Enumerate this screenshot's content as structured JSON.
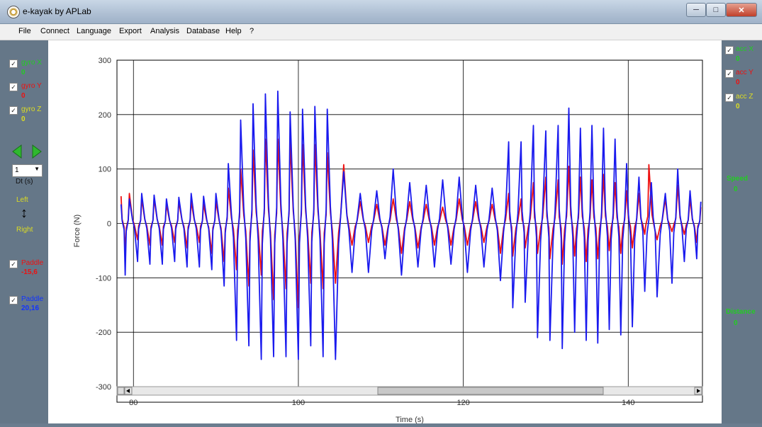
{
  "window": {
    "title": "e-kayak by APLab"
  },
  "menu": [
    "File",
    "Connect",
    "Language",
    "Export",
    "Analysis",
    "Database",
    "Help",
    "?"
  ],
  "left_panel": {
    "gyro": [
      {
        "label": "gyro X",
        "value": "0",
        "color": "#22cc22"
      },
      {
        "label": "gyro Y",
        "value": "0",
        "color": "#ee1111"
      },
      {
        "label": "gyro Z",
        "value": "0",
        "color": "#dddd22"
      }
    ],
    "dt_value": "1",
    "dt_label": "Dt (s)",
    "left_label": "Left",
    "right_label": "Right",
    "paddle_red": {
      "label": "Paddle",
      "value": "-15,6",
      "color": "#ee1111"
    },
    "paddle_blue": {
      "label": "Paddle",
      "value": "20,16",
      "color": "#1133ff"
    }
  },
  "right_panel": {
    "acc": [
      {
        "label": "acc X",
        "value": "0",
        "color": "#22cc22"
      },
      {
        "label": "acc Y",
        "value": "0",
        "color": "#ee1111"
      },
      {
        "label": "acc Z",
        "value": "0",
        "color": "#dddd22"
      }
    ],
    "speed_label": "Speed",
    "speed_value": "0",
    "distance_label": "Distance",
    "distance_value": "0"
  },
  "chart_data": {
    "type": "line",
    "title": "",
    "xlabel": "Time (s)",
    "ylabel": "Force (N)",
    "xlim": [
      78,
      149
    ],
    "ylim": [
      -300,
      300
    ],
    "x_ticks": [
      80,
      100,
      120,
      140
    ],
    "y_ticks": [
      300,
      200,
      100,
      0,
      -100,
      -200,
      -300
    ],
    "grid": true,
    "series": [
      {
        "color": "#1a1aee",
        "peaks": [
          [
            78.5,
            35
          ],
          [
            79.5,
            45
          ],
          [
            81,
            55
          ],
          [
            82.5,
            52
          ],
          [
            84,
            45
          ],
          [
            85.5,
            48
          ],
          [
            87,
            55
          ],
          [
            88.5,
            50
          ],
          [
            90,
            55
          ],
          [
            91.5,
            110
          ],
          [
            93,
            190
          ],
          [
            94.5,
            220
          ],
          [
            96,
            238
          ],
          [
            97.5,
            243
          ],
          [
            99,
            205
          ],
          [
            100.5,
            210
          ],
          [
            102,
            215
          ],
          [
            103.5,
            210
          ],
          [
            105.5,
            95
          ],
          [
            107.5,
            55
          ],
          [
            109.5,
            60
          ],
          [
            111.5,
            100
          ],
          [
            113.5,
            75
          ],
          [
            115.5,
            70
          ],
          [
            117.5,
            80
          ],
          [
            119.5,
            85
          ],
          [
            121.5,
            70
          ],
          [
            123.5,
            65
          ],
          [
            125.5,
            150
          ],
          [
            127,
            150
          ],
          [
            128.5,
            180
          ],
          [
            130,
            170
          ],
          [
            131.5,
            180
          ],
          [
            132.8,
            212
          ],
          [
            134.2,
            175
          ],
          [
            135.6,
            180
          ],
          [
            137,
            175
          ],
          [
            138.4,
            155
          ],
          [
            139.8,
            110
          ],
          [
            141.3,
            85
          ],
          [
            142.8,
            75
          ],
          [
            144.5,
            55
          ],
          [
            146,
            100
          ],
          [
            147.5,
            60
          ],
          [
            148.8,
            40
          ]
        ],
        "troughs": [
          [
            79,
            -95
          ],
          [
            80.5,
            -70
          ],
          [
            82,
            -75
          ],
          [
            83.5,
            -75
          ],
          [
            85,
            -70
          ],
          [
            86.5,
            -80
          ],
          [
            88,
            -80
          ],
          [
            89.5,
            -85
          ],
          [
            91,
            -115
          ],
          [
            92.5,
            -215
          ],
          [
            94,
            -225
          ],
          [
            95.5,
            -250
          ],
          [
            97,
            -245
          ],
          [
            98.5,
            -245
          ],
          [
            100,
            -250
          ],
          [
            101.5,
            -225
          ],
          [
            103,
            -245
          ],
          [
            104.5,
            -250
          ],
          [
            106.5,
            -90
          ],
          [
            108.5,
            -90
          ],
          [
            110.5,
            -65
          ],
          [
            112.5,
            -95
          ],
          [
            114.5,
            -80
          ],
          [
            116.5,
            -80
          ],
          [
            118.5,
            -75
          ],
          [
            120.5,
            -90
          ],
          [
            122.5,
            -80
          ],
          [
            124.5,
            -105
          ],
          [
            126,
            -155
          ],
          [
            127.5,
            -145
          ],
          [
            129,
            -210
          ],
          [
            130.5,
            -215
          ],
          [
            132,
            -230
          ],
          [
            133.5,
            -200
          ],
          [
            134.9,
            -215
          ],
          [
            136.3,
            -220
          ],
          [
            137.7,
            -195
          ],
          [
            139.1,
            -205
          ],
          [
            140.5,
            -190
          ],
          [
            142,
            -125
          ],
          [
            143.5,
            -135
          ],
          [
            145.3,
            -110
          ],
          [
            146.8,
            -70
          ],
          [
            148.3,
            -65
          ]
        ]
      },
      {
        "color": "#ee1111",
        "peaks": [
          [
            78.5,
            50
          ],
          [
            79.5,
            55
          ],
          [
            81,
            45
          ],
          [
            82.5,
            45
          ],
          [
            84,
            35
          ],
          [
            85.5,
            40
          ],
          [
            87,
            40
          ],
          [
            88.5,
            35
          ],
          [
            90,
            40
          ],
          [
            91.5,
            65
          ],
          [
            93,
            100
          ],
          [
            94.5,
            135
          ],
          [
            96,
            155
          ],
          [
            97.5,
            155
          ],
          [
            99,
            150
          ],
          [
            100.5,
            145
          ],
          [
            102,
            145
          ],
          [
            103.5,
            130
          ],
          [
            105.5,
            108
          ],
          [
            107.5,
            40
          ],
          [
            109.5,
            35
          ],
          [
            111.5,
            45
          ],
          [
            113.5,
            40
          ],
          [
            115.5,
            35
          ],
          [
            117.5,
            30
          ],
          [
            119.5,
            45
          ],
          [
            121.5,
            40
          ],
          [
            123.5,
            35
          ],
          [
            125.5,
            55
          ],
          [
            127,
            45
          ],
          [
            128.5,
            75
          ],
          [
            130,
            85
          ],
          [
            131.5,
            80
          ],
          [
            132.8,
            105
          ],
          [
            134.2,
            85
          ],
          [
            135.6,
            80
          ],
          [
            137,
            90
          ],
          [
            138.4,
            75
          ],
          [
            139.8,
            60
          ],
          [
            141.3,
            55
          ],
          [
            142.5,
            108
          ],
          [
            144.5,
            45
          ],
          [
            146,
            70
          ],
          [
            147.5,
            45
          ],
          [
            148.8,
            30
          ]
        ],
        "troughs": [
          [
            79,
            -55
          ],
          [
            80.5,
            -30
          ],
          [
            82,
            -40
          ],
          [
            83.5,
            -40
          ],
          [
            85,
            -35
          ],
          [
            86.5,
            -45
          ],
          [
            88,
            -35
          ],
          [
            89.5,
            -55
          ],
          [
            91,
            -70
          ],
          [
            92.5,
            -85
          ],
          [
            94,
            -115
          ],
          [
            95.5,
            -95
          ],
          [
            97,
            -140
          ],
          [
            98.5,
            -120
          ],
          [
            100,
            -155
          ],
          [
            101.5,
            -110
          ],
          [
            103,
            -120
          ],
          [
            104.5,
            -110
          ],
          [
            106.5,
            -40
          ],
          [
            108.5,
            -35
          ],
          [
            110.5,
            -40
          ],
          [
            112.5,
            -55
          ],
          [
            114.5,
            -45
          ],
          [
            116.5,
            -40
          ],
          [
            118.5,
            -40
          ],
          [
            120.5,
            -40
          ],
          [
            122.5,
            -35
          ],
          [
            124.5,
            -55
          ],
          [
            126,
            -60
          ],
          [
            127.5,
            -45
          ],
          [
            129,
            -55
          ],
          [
            130.5,
            -65
          ],
          [
            132,
            -75
          ],
          [
            133.5,
            -60
          ],
          [
            134.9,
            -70
          ],
          [
            136.3,
            -65
          ],
          [
            137.7,
            -50
          ],
          [
            139.1,
            -55
          ],
          [
            140.5,
            -45
          ],
          [
            142,
            -20
          ],
          [
            143.5,
            -30
          ],
          [
            145.3,
            -15
          ],
          [
            146.8,
            -20
          ],
          [
            148.3,
            -35
          ]
        ]
      }
    ]
  }
}
